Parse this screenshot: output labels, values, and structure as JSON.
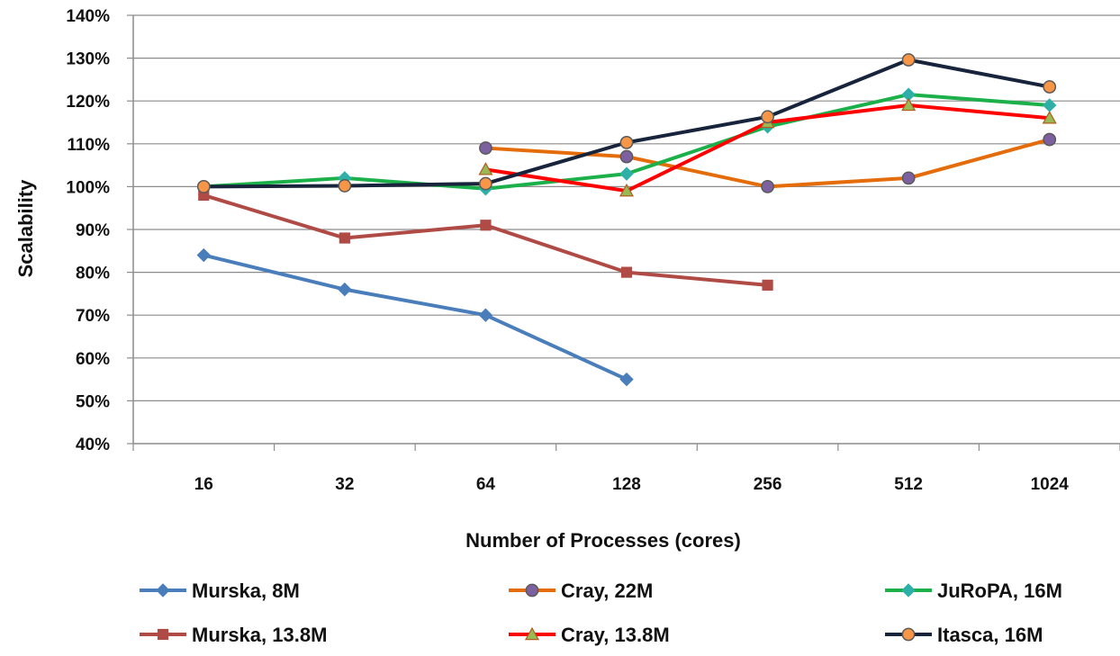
{
  "chart_data": {
    "type": "line",
    "title": "",
    "xlabel": "Number of Processes (cores)",
    "ylabel": "Scalability",
    "categories": [
      "16",
      "32",
      "64",
      "128",
      "256",
      "512",
      "1024"
    ],
    "yticks": [
      "40%",
      "50%",
      "60%",
      "70%",
      "80%",
      "90%",
      "100%",
      "110%",
      "120%",
      "130%",
      "140%"
    ],
    "ylim": [
      40,
      140
    ],
    "y_unit": "%",
    "grid": "horizontal",
    "legend_position": "bottom",
    "series": [
      {
        "name": "Murska, 8M",
        "color": "#4a7ebb",
        "line_color": "#4a7ebb",
        "marker": "diamond",
        "marker_color": "#4a7ebb",
        "values": [
          84,
          76,
          70,
          55,
          null,
          null,
          null
        ]
      },
      {
        "name": "Cray, 22M",
        "color": "#e46c0a",
        "line_color": "#e46c0a",
        "marker": "circle",
        "marker_color": "#7d60a0",
        "values": [
          null,
          null,
          109,
          107,
          100,
          102,
          111
        ]
      },
      {
        "name": "JuRoPA, 16M",
        "color": "#1cb04a",
        "line_color": "#1cb04a",
        "marker": "diamond",
        "marker_color": "#2eb0a8",
        "values": [
          100,
          102,
          99.5,
          103,
          114,
          121.5,
          119
        ]
      },
      {
        "name": "Murska, 13.8M",
        "color": "#b04a45",
        "line_color": "#b04a45",
        "marker": "square",
        "marker_color": "#b04a45",
        "values": [
          98,
          88,
          91,
          80,
          77,
          null,
          null
        ]
      },
      {
        "name": "Cray, 13.8M",
        "color": "#ff0000",
        "line_color": "#ff0000",
        "marker": "triangle",
        "marker_color": "#98b954",
        "values": [
          null,
          null,
          104,
          99,
          115,
          119,
          116
        ]
      },
      {
        "name": "Itasca, 16M",
        "color": "#17243b",
        "line_color": "#17243b",
        "marker": "circle",
        "marker_color": "#f79646",
        "values": [
          100,
          100.2,
          100.7,
          110.3,
          116.3,
          129.6,
          123.3
        ]
      }
    ]
  }
}
